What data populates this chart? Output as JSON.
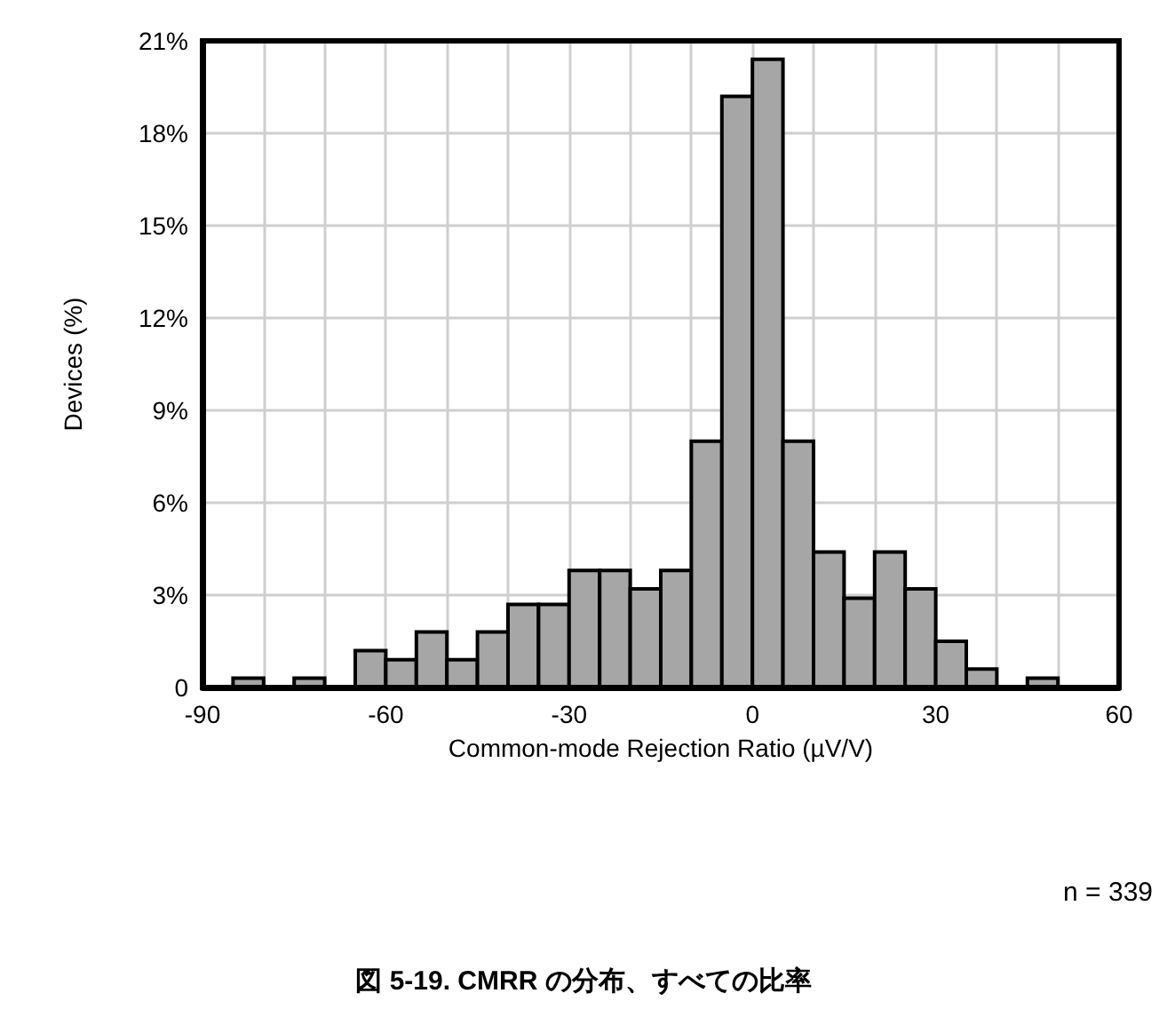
{
  "chart_data": {
    "type": "histogram",
    "title": "図 5-19. CMRR の分布、すべての比率",
    "xlabel": "Common-mode Rejection Ratio (µV/V)",
    "ylabel": "Devices (%)",
    "annotations": [
      "n = 339"
    ],
    "bins": [
      -85,
      -80,
      -75,
      -70,
      -65,
      -60,
      -55,
      -50,
      -45,
      -40,
      -35,
      -30,
      -25,
      -20,
      -15,
      -10,
      -5,
      0,
      5,
      10,
      15,
      20,
      25,
      30,
      35,
      40,
      45,
      50
    ],
    "values": [
      0.3,
      0,
      0.3,
      0,
      1.2,
      0.9,
      1.8,
      0.9,
      1.8,
      2.7,
      2.7,
      3.8,
      3.8,
      3.2,
      3.8,
      8.0,
      19.2,
      20.4,
      8.0,
      4.4,
      2.9,
      4.4,
      3.2,
      1.5,
      0.6,
      0,
      0.3
    ],
    "color": "#a6a6a6",
    "xlim": [
      -90,
      60
    ],
    "xticks": [
      -90,
      {
        "value": -80,
        "label": null
      },
      {
        "value": -70,
        "label": null
      },
      -60,
      {
        "value": -50,
        "label": null
      },
      {
        "value": -40,
        "label": null
      },
      -30,
      {
        "value": -20,
        "label": null
      },
      {
        "value": -10,
        "label": null
      },
      0,
      {
        "value": 10,
        "label": null
      },
      {
        "value": 20,
        "label": null
      },
      30,
      {
        "value": 40,
        "label": null
      },
      {
        "value": 50,
        "label": null
      },
      60
    ],
    "ylim": [
      0,
      21
    ],
    "yticks": [
      0,
      {
        "value": 3,
        "label": "3%"
      },
      {
        "value": 6,
        "label": "6%"
      },
      {
        "value": 9,
        "label": "9%"
      },
      {
        "value": 12,
        "label": "12%"
      },
      {
        "value": 15,
        "label": "15%"
      },
      {
        "value": 18,
        "label": "18%"
      },
      {
        "value": 21,
        "label": "21%"
      }
    ],
    "grid": true
  }
}
